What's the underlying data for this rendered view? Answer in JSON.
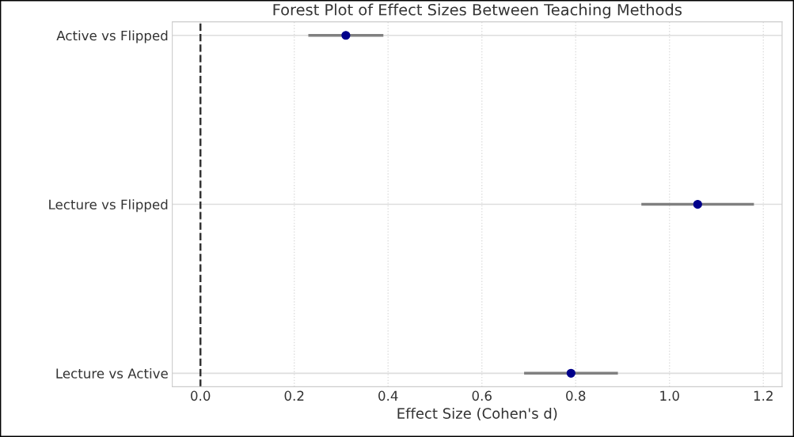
{
  "chart_data": {
    "type": "scatter",
    "title": "Forest Plot of Effect Sizes Between Teaching Methods",
    "xlabel": "Effect Size (Cohen's d)",
    "orientation": "horizontal",
    "categories": [
      "Active vs Flipped",
      "Lecture vs Flipped",
      "Lecture vs Active"
    ],
    "values": [
      0.31,
      1.06,
      0.79
    ],
    "errors": [
      [
        0.23,
        0.39
      ],
      [
        0.94,
        1.18
      ],
      [
        0.69,
        0.89
      ]
    ],
    "color": "#00008b",
    "xlim": [
      -0.06,
      1.24
    ],
    "xticks": [
      {
        "value": 0,
        "label": "0.0"
      },
      0.2,
      0.4,
      0.6,
      0.8,
      {
        "value": 1,
        "label": "1.0"
      },
      1.2
    ],
    "ref_lines": [
      {
        "axis": "x",
        "value": 0,
        "color": "#333333",
        "line_style": "dashed"
      }
    ],
    "grid": true,
    "marker": "circle"
  }
}
